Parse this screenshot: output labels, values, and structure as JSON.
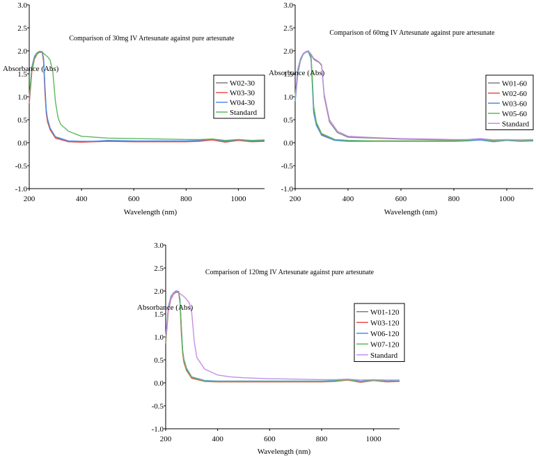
{
  "chart_data": [
    {
      "type": "line",
      "title": "Comparison of 30mg IV Artesunate against pure artesunate",
      "xlabel": "Wavelength (nm)",
      "ylabel": "Absorbance (Abs)",
      "xlim": [
        200,
        1100
      ],
      "ylim": [
        -1.0,
        3.0
      ],
      "xticks": [
        200,
        400,
        600,
        800,
        1000
      ],
      "yticks": [
        -1.0,
        -0.5,
        0.0,
        0.5,
        1.0,
        1.5,
        2.0,
        2.5,
        3.0
      ],
      "xtick_labels": [
        "200",
        "400",
        "600",
        "800",
        "1000"
      ],
      "ytick_labels": [
        "-1.0",
        "-0.5",
        "0.0",
        "0.5",
        "1.0",
        "1.5",
        "2.0",
        "2.5",
        "3.0"
      ],
      "grid": false,
      "legend_position": "right",
      "series": [
        {
          "name": "W02-30",
          "color": "#7f7f7f",
          "x": [
            200,
            210,
            220,
            230,
            240,
            250,
            255,
            260,
            265,
            270,
            280,
            300,
            350,
            400,
            450,
            500,
            600,
            700,
            800,
            850,
            900,
            950,
            1000,
            1050,
            1100
          ],
          "y": [
            0.9,
            1.6,
            1.85,
            1.95,
            1.98,
            1.97,
            1.8,
            1.2,
            0.7,
            0.5,
            0.3,
            0.12,
            0.03,
            0.02,
            0.03,
            0.04,
            0.03,
            0.03,
            0.03,
            0.04,
            0.07,
            0.02,
            0.06,
            0.03,
            0.04
          ]
        },
        {
          "name": "W03-30",
          "color": "#e8504a",
          "x": [
            200,
            210,
            220,
            230,
            240,
            250,
            255,
            260,
            265,
            270,
            280,
            300,
            350,
            400,
            450,
            500,
            600,
            700,
            800,
            850,
            900,
            950,
            1000,
            1050,
            1100
          ],
          "y": [
            0.85,
            1.55,
            1.82,
            1.93,
            1.97,
            1.96,
            1.75,
            1.1,
            0.65,
            0.45,
            0.28,
            0.1,
            0.02,
            0.01,
            0.02,
            0.03,
            0.02,
            0.02,
            0.02,
            0.03,
            0.06,
            0.01,
            0.05,
            0.02,
            0.03
          ]
        },
        {
          "name": "W04-30",
          "color": "#4a8ee6",
          "x": [
            200,
            210,
            220,
            230,
            240,
            250,
            255,
            260,
            265,
            270,
            280,
            300,
            350,
            400,
            450,
            500,
            600,
            700,
            800,
            850,
            900,
            950,
            1000,
            1050,
            1100
          ],
          "y": [
            0.95,
            1.65,
            1.88,
            1.96,
            1.99,
            1.98,
            1.82,
            1.25,
            0.72,
            0.52,
            0.32,
            0.13,
            0.04,
            0.03,
            0.03,
            0.05,
            0.04,
            0.04,
            0.04,
            0.05,
            0.08,
            0.03,
            0.07,
            0.04,
            0.05
          ]
        },
        {
          "name": "Standard",
          "color": "#5cb85c",
          "x": [
            200,
            210,
            220,
            230,
            240,
            250,
            260,
            270,
            280,
            290,
            300,
            310,
            320,
            350,
            400,
            450,
            500,
            600,
            700,
            800,
            850,
            900,
            950,
            1000,
            1050,
            1100
          ],
          "y": [
            1.0,
            1.6,
            1.85,
            1.95,
            1.98,
            1.97,
            1.92,
            1.87,
            1.8,
            1.55,
            0.9,
            0.55,
            0.4,
            0.25,
            0.14,
            0.12,
            0.1,
            0.09,
            0.08,
            0.07,
            0.07,
            0.08,
            0.05,
            0.07,
            0.05,
            0.06
          ]
        }
      ]
    },
    {
      "type": "line",
      "title": "Comparison of 60mg IV Artesunate against pure artesunate",
      "xlabel": "Wavelength (nm)",
      "ylabel": "Absorbance (Abs)",
      "xlim": [
        200,
        1100
      ],
      "ylim": [
        -1.0,
        3.0
      ],
      "xticks": [
        200,
        400,
        600,
        800,
        1000
      ],
      "yticks": [
        -1.0,
        -0.5,
        0.0,
        0.5,
        1.0,
        1.5,
        2.0,
        2.5,
        3.0
      ],
      "xtick_labels": [
        "200",
        "400",
        "600",
        "800",
        "1000"
      ],
      "ytick_labels": [
        "-1.0",
        "-0.5",
        "0.0",
        "0.5",
        "1.0",
        "1.5",
        "2.0",
        "2.5",
        "3.0"
      ],
      "grid": false,
      "legend_position": "right",
      "series": [
        {
          "name": "W01-60",
          "color": "#7f7f7f",
          "x": [
            200,
            210,
            220,
            230,
            240,
            250,
            260,
            270,
            280,
            290,
            300,
            310,
            330,
            360,
            400,
            500,
            600,
            700,
            800,
            850,
            900,
            950,
            1000,
            1050,
            1100
          ],
          "y": [
            1.0,
            1.6,
            1.82,
            1.93,
            1.98,
            2.0,
            1.92,
            1.82,
            1.78,
            1.75,
            1.68,
            1.0,
            0.45,
            0.22,
            0.12,
            0.1,
            0.08,
            0.07,
            0.06,
            0.06,
            0.08,
            0.05,
            0.06,
            0.05,
            0.06
          ]
        },
        {
          "name": "W02-60",
          "color": "#e8504a",
          "x": [
            200,
            210,
            220,
            230,
            240,
            250,
            260,
            265,
            270,
            280,
            300,
            350,
            400,
            500,
            600,
            700,
            800,
            850,
            900,
            950,
            1000,
            1050,
            1100
          ],
          "y": [
            0.95,
            1.55,
            1.8,
            1.93,
            1.98,
            1.99,
            1.85,
            1.3,
            0.7,
            0.4,
            0.18,
            0.06,
            0.04,
            0.04,
            0.04,
            0.04,
            0.04,
            0.05,
            0.07,
            0.03,
            0.06,
            0.04,
            0.05
          ]
        },
        {
          "name": "W03-60",
          "color": "#4a8ee6",
          "x": [
            200,
            210,
            220,
            230,
            240,
            250,
            260,
            265,
            270,
            280,
            300,
            350,
            400,
            500,
            600,
            700,
            800,
            850,
            900,
            950,
            1000,
            1050,
            1100
          ],
          "y": [
            0.9,
            1.5,
            1.78,
            1.92,
            1.97,
            1.98,
            1.83,
            1.25,
            0.65,
            0.38,
            0.16,
            0.05,
            0.03,
            0.03,
            0.03,
            0.03,
            0.03,
            0.04,
            0.06,
            0.02,
            0.05,
            0.03,
            0.04
          ]
        },
        {
          "name": "W05-60",
          "color": "#5cb85c",
          "x": [
            200,
            210,
            220,
            230,
            240,
            250,
            260,
            265,
            270,
            280,
            300,
            350,
            400,
            500,
            600,
            700,
            800,
            850,
            900,
            950,
            1000,
            1050,
            1100
          ],
          "y": [
            0.95,
            1.55,
            1.8,
            1.93,
            1.98,
            1.99,
            1.88,
            1.4,
            0.8,
            0.45,
            0.2,
            0.07,
            0.05,
            0.04,
            0.04,
            0.04,
            0.04,
            0.05,
            0.08,
            0.03,
            0.06,
            0.04,
            0.05
          ]
        },
        {
          "name": "Standard",
          "color": "#c48ee8",
          "x": [
            200,
            210,
            220,
            230,
            240,
            250,
            260,
            270,
            280,
            290,
            300,
            310,
            330,
            360,
            400,
            500,
            600,
            700,
            800,
            850,
            900,
            950,
            1000,
            1050,
            1100
          ],
          "y": [
            1.0,
            1.6,
            1.83,
            1.94,
            1.98,
            2.0,
            1.93,
            1.84,
            1.8,
            1.76,
            1.7,
            1.05,
            0.5,
            0.25,
            0.14,
            0.11,
            0.09,
            0.08,
            0.07,
            0.07,
            0.09,
            0.06,
            0.07,
            0.06,
            0.07
          ]
        }
      ]
    },
    {
      "type": "line",
      "title": "Comparison of 120mg IV Artesunate against pure artesunate",
      "xlabel": "Wavelength (nm)",
      "ylabel": "Absorbance (Abs)",
      "xlim": [
        200,
        1100
      ],
      "ylim": [
        -1.0,
        3.0
      ],
      "xticks": [
        200,
        400,
        600,
        800,
        1000
      ],
      "yticks": [
        -1.0,
        -0.5,
        0.0,
        0.5,
        1.0,
        1.5,
        2.0,
        2.5,
        3.0
      ],
      "xtick_labels": [
        "200",
        "400",
        "600",
        "800",
        "1000"
      ],
      "ytick_labels": [
        "-1.0",
        "-0.5",
        "0.0",
        "0.5",
        "1.0",
        "1.5",
        "2.0",
        "2.5",
        "3.0"
      ],
      "grid": false,
      "legend_position": "right",
      "series": [
        {
          "name": "W01-120",
          "color": "#7f7f7f",
          "x": [
            200,
            210,
            220,
            230,
            240,
            250,
            255,
            260,
            265,
            270,
            280,
            300,
            350,
            400,
            500,
            600,
            700,
            800,
            850,
            900,
            950,
            1000,
            1050,
            1100
          ],
          "y": [
            0.9,
            1.6,
            1.85,
            1.95,
            1.99,
            1.98,
            1.8,
            1.2,
            0.7,
            0.5,
            0.3,
            0.12,
            0.04,
            0.03,
            0.03,
            0.03,
            0.03,
            0.03,
            0.04,
            0.07,
            0.02,
            0.06,
            0.03,
            0.04
          ]
        },
        {
          "name": "W03-120",
          "color": "#e8504a",
          "x": [
            200,
            210,
            220,
            230,
            240,
            250,
            255,
            260,
            265,
            270,
            280,
            300,
            350,
            400,
            500,
            600,
            700,
            800,
            850,
            900,
            950,
            1000,
            1050,
            1100
          ],
          "y": [
            0.85,
            1.55,
            1.82,
            1.93,
            1.97,
            1.96,
            1.75,
            1.1,
            0.65,
            0.45,
            0.27,
            0.1,
            0.03,
            0.02,
            0.02,
            0.02,
            0.02,
            0.02,
            0.03,
            0.06,
            0.01,
            0.05,
            0.02,
            0.03
          ]
        },
        {
          "name": "W06-120",
          "color": "#4a8ee6",
          "x": [
            200,
            210,
            220,
            230,
            240,
            250,
            255,
            260,
            265,
            270,
            280,
            300,
            350,
            400,
            500,
            600,
            700,
            800,
            850,
            900,
            950,
            1000,
            1050,
            1100
          ],
          "y": [
            0.95,
            1.65,
            1.88,
            1.96,
            2.0,
            1.99,
            1.82,
            1.25,
            0.72,
            0.52,
            0.32,
            0.13,
            0.05,
            0.04,
            0.04,
            0.04,
            0.04,
            0.04,
            0.05,
            0.08,
            0.03,
            0.07,
            0.04,
            0.05
          ]
        },
        {
          "name": "W07-120",
          "color": "#5cb85c",
          "x": [
            200,
            210,
            220,
            230,
            240,
            250,
            255,
            260,
            265,
            270,
            280,
            300,
            350,
            400,
            500,
            600,
            700,
            800,
            850,
            900,
            950,
            1000,
            1050,
            1100
          ],
          "y": [
            0.9,
            1.6,
            1.86,
            1.95,
            1.98,
            1.97,
            1.8,
            1.22,
            0.7,
            0.5,
            0.3,
            0.12,
            0.04,
            0.03,
            0.03,
            0.03,
            0.03,
            0.03,
            0.04,
            0.07,
            0.02,
            0.06,
            0.03,
            0.04
          ]
        },
        {
          "name": "Standard",
          "color": "#c48ee8",
          "x": [
            200,
            210,
            220,
            230,
            240,
            250,
            260,
            270,
            280,
            290,
            300,
            310,
            320,
            350,
            400,
            450,
            500,
            600,
            700,
            800,
            850,
            900,
            950,
            1000,
            1050,
            1100
          ],
          "y": [
            1.0,
            1.6,
            1.85,
            1.95,
            1.98,
            1.97,
            1.92,
            1.88,
            1.82,
            1.75,
            1.55,
            0.9,
            0.55,
            0.3,
            0.17,
            0.13,
            0.11,
            0.09,
            0.08,
            0.07,
            0.07,
            0.08,
            0.06,
            0.07,
            0.06,
            0.06
          ]
        }
      ]
    }
  ]
}
